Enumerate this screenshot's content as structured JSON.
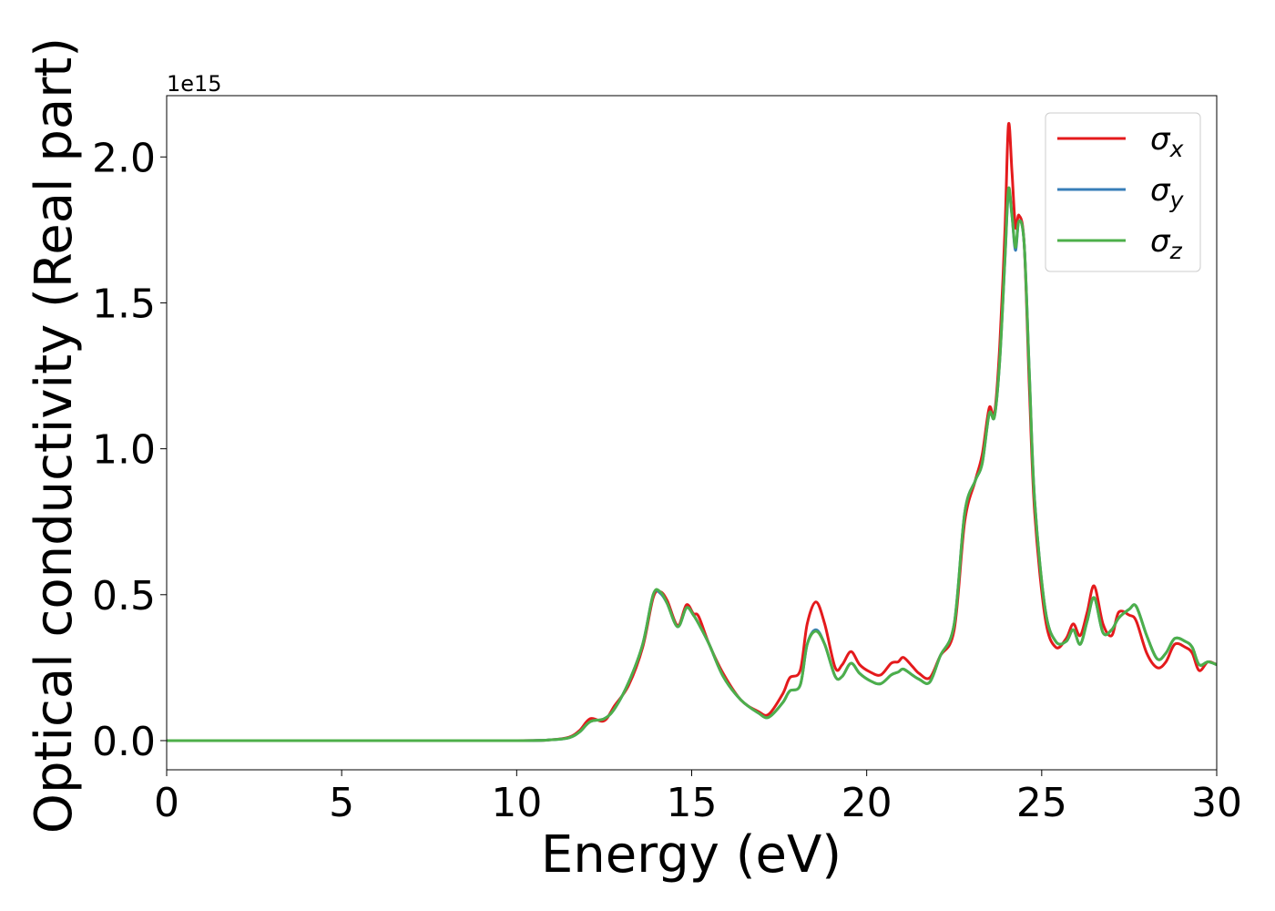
{
  "chart_data": {
    "type": "line",
    "title": "",
    "xlabel": "Energy (eV)",
    "ylabel": "Optical conductivity (Real part)",
    "y_offset_label": "1e15",
    "xlim": [
      0,
      30
    ],
    "ylim": [
      -0.1,
      2.21
    ],
    "xticks": [
      0,
      5,
      10,
      15,
      20,
      25,
      30
    ],
    "xtick_labels": [
      "0",
      "5",
      "10",
      "15",
      "20",
      "25",
      "30"
    ],
    "yticks": [
      0.0,
      0.5,
      1.0,
      1.5,
      2.0
    ],
    "ytick_labels": [
      "0.0",
      "0.5",
      "1.0",
      "1.5",
      "2.0"
    ],
    "grid": false,
    "legend_position": "top-right",
    "series": [
      {
        "name": "σx",
        "symbol": "σ",
        "subscript": "x",
        "color": "#e41a1c",
        "x": [
          0,
          5,
          10,
          11,
          11.5,
          11.8,
          12.1,
          12.5,
          12.8,
          13.2,
          13.6,
          13.9,
          14.1,
          14.3,
          14.6,
          14.85,
          15.05,
          15.2,
          15.5,
          15.9,
          16.4,
          16.9,
          17.2,
          17.6,
          17.8,
          18.1,
          18.3,
          18.55,
          18.8,
          19.1,
          19.3,
          19.55,
          19.8,
          20.1,
          20.4,
          20.7,
          20.9,
          21.05,
          21.3,
          21.5,
          21.8,
          22.1,
          22.5,
          22.8,
          23.1,
          23.3,
          23.5,
          23.65,
          23.8,
          23.95,
          24.05,
          24.15,
          24.25,
          24.35,
          24.5,
          24.65,
          24.8,
          25.1,
          25.4,
          25.7,
          25.9,
          26.1,
          26.3,
          26.5,
          26.75,
          27.0,
          27.2,
          27.5,
          27.7,
          28.0,
          28.3,
          28.55,
          28.8,
          29.1,
          29.3,
          29.5,
          29.75,
          30
        ],
        "y": [
          0.0,
          0.0,
          0.0,
          0.003,
          0.012,
          0.035,
          0.075,
          0.068,
          0.12,
          0.19,
          0.32,
          0.49,
          0.51,
          0.48,
          0.395,
          0.465,
          0.435,
          0.425,
          0.33,
          0.23,
          0.14,
          0.1,
          0.09,
          0.16,
          0.215,
          0.24,
          0.4,
          0.475,
          0.4,
          0.25,
          0.26,
          0.305,
          0.26,
          0.235,
          0.225,
          0.265,
          0.27,
          0.285,
          0.255,
          0.23,
          0.215,
          0.29,
          0.38,
          0.75,
          0.89,
          0.98,
          1.14,
          1.12,
          1.35,
          1.75,
          2.11,
          1.95,
          1.76,
          1.8,
          1.7,
          1.2,
          0.78,
          0.42,
          0.32,
          0.35,
          0.4,
          0.36,
          0.44,
          0.53,
          0.4,
          0.36,
          0.44,
          0.43,
          0.41,
          0.3,
          0.25,
          0.27,
          0.33,
          0.32,
          0.3,
          0.24,
          0.27,
          0.26
        ]
      },
      {
        "name": "σy",
        "symbol": "σ",
        "subscript": "y",
        "color": "#377eb8",
        "x": [
          0,
          5,
          10,
          11,
          11.5,
          11.8,
          12.1,
          12.5,
          12.8,
          13.2,
          13.6,
          13.9,
          14.1,
          14.3,
          14.6,
          14.85,
          15.05,
          15.2,
          15.5,
          15.9,
          16.4,
          16.9,
          17.2,
          17.6,
          17.8,
          18.1,
          18.3,
          18.55,
          18.8,
          19.1,
          19.3,
          19.55,
          19.8,
          20.1,
          20.4,
          20.7,
          20.9,
          21.05,
          21.3,
          21.5,
          21.8,
          22.1,
          22.5,
          22.8,
          23.1,
          23.3,
          23.5,
          23.65,
          23.8,
          23.95,
          24.05,
          24.15,
          24.25,
          24.35,
          24.5,
          24.65,
          24.8,
          25.1,
          25.4,
          25.7,
          25.9,
          26.1,
          26.3,
          26.5,
          26.75,
          27.0,
          27.2,
          27.5,
          27.7,
          28.0,
          28.3,
          28.55,
          28.8,
          29.1,
          29.3,
          29.5,
          29.75,
          30
        ],
        "y": [
          0.0,
          0.0,
          0.0,
          0.003,
          0.01,
          0.03,
          0.065,
          0.075,
          0.11,
          0.2,
          0.33,
          0.5,
          0.505,
          0.47,
          0.39,
          0.455,
          0.43,
          0.4,
          0.33,
          0.22,
          0.14,
          0.095,
          0.08,
          0.13,
          0.17,
          0.19,
          0.33,
          0.38,
          0.33,
          0.22,
          0.22,
          0.265,
          0.23,
          0.205,
          0.195,
          0.225,
          0.235,
          0.245,
          0.225,
          0.21,
          0.2,
          0.29,
          0.4,
          0.78,
          0.89,
          0.95,
          1.12,
          1.11,
          1.3,
          1.65,
          1.88,
          1.8,
          1.68,
          1.78,
          1.7,
          1.25,
          0.82,
          0.45,
          0.34,
          0.34,
          0.38,
          0.33,
          0.41,
          0.49,
          0.37,
          0.38,
          0.42,
          0.45,
          0.46,
          0.36,
          0.28,
          0.3,
          0.35,
          0.34,
          0.32,
          0.26,
          0.27,
          0.26
        ]
      },
      {
        "name": "σz",
        "symbol": "σ",
        "subscript": "z",
        "color": "#4daf4a",
        "x": [
          0,
          5,
          10,
          11,
          11.5,
          11.8,
          12.1,
          12.5,
          12.8,
          13.2,
          13.6,
          13.9,
          14.1,
          14.3,
          14.6,
          14.85,
          15.05,
          15.2,
          15.5,
          15.9,
          16.4,
          16.9,
          17.2,
          17.6,
          17.8,
          18.1,
          18.3,
          18.55,
          18.8,
          19.1,
          19.3,
          19.55,
          19.8,
          20.1,
          20.4,
          20.7,
          20.9,
          21.05,
          21.3,
          21.5,
          21.8,
          22.1,
          22.5,
          22.8,
          23.1,
          23.3,
          23.5,
          23.65,
          23.8,
          23.95,
          24.05,
          24.15,
          24.25,
          24.35,
          24.5,
          24.65,
          24.8,
          25.1,
          25.4,
          25.7,
          25.9,
          26.1,
          26.3,
          26.5,
          26.75,
          27.0,
          27.2,
          27.5,
          27.7,
          28.0,
          28.3,
          28.55,
          28.8,
          29.1,
          29.3,
          29.5,
          29.75,
          30
        ],
        "y": [
          0.0,
          0.0,
          0.0,
          0.003,
          0.01,
          0.03,
          0.065,
          0.075,
          0.11,
          0.2,
          0.33,
          0.5,
          0.51,
          0.47,
          0.39,
          0.455,
          0.43,
          0.4,
          0.33,
          0.22,
          0.14,
          0.095,
          0.08,
          0.13,
          0.17,
          0.19,
          0.33,
          0.375,
          0.33,
          0.22,
          0.22,
          0.265,
          0.23,
          0.205,
          0.195,
          0.225,
          0.235,
          0.245,
          0.225,
          0.21,
          0.2,
          0.29,
          0.4,
          0.78,
          0.89,
          0.95,
          1.12,
          1.11,
          1.3,
          1.65,
          1.89,
          1.8,
          1.69,
          1.78,
          1.7,
          1.25,
          0.82,
          0.45,
          0.34,
          0.34,
          0.38,
          0.33,
          0.41,
          0.49,
          0.37,
          0.38,
          0.42,
          0.45,
          0.46,
          0.36,
          0.28,
          0.3,
          0.35,
          0.34,
          0.32,
          0.26,
          0.27,
          0.26
        ]
      }
    ]
  }
}
